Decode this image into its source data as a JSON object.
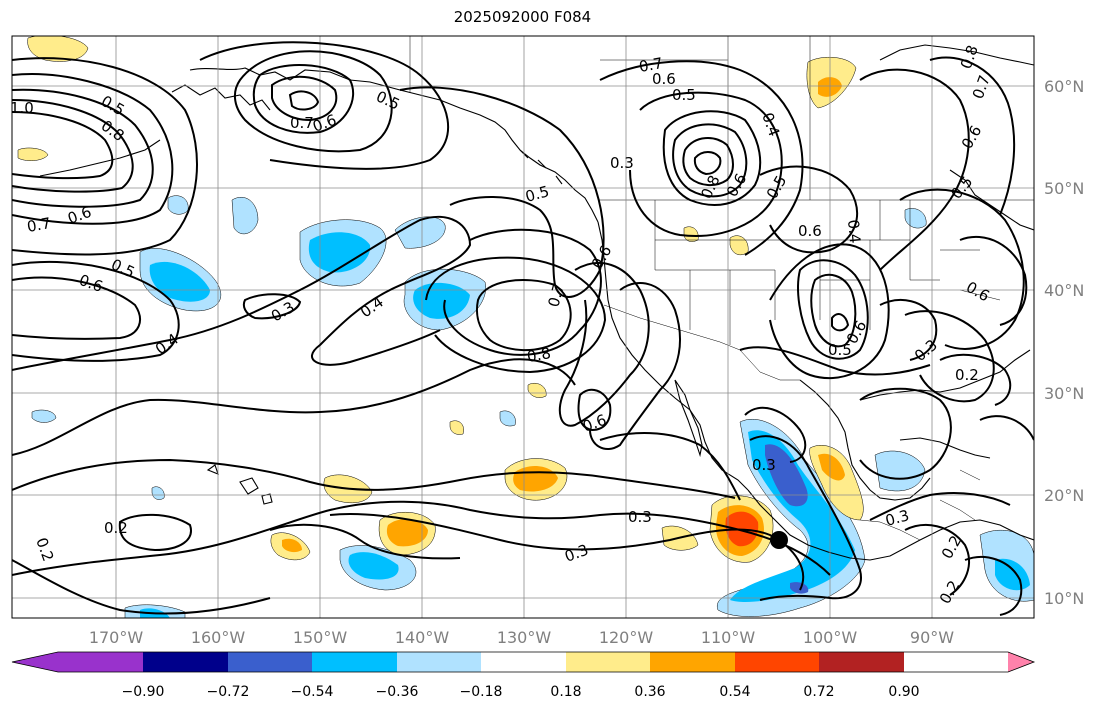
{
  "title": "2025092000 F084",
  "map": {
    "lon_labels": [
      "170°W",
      "160°W",
      "150°W",
      "140°W",
      "130°W",
      "120°W",
      "110°W",
      "100°W",
      "90°W"
    ],
    "lat_labels": [
      "60°N",
      "50°N",
      "40°N",
      "30°N",
      "20°N",
      "10°N"
    ]
  },
  "contour_labels": [
    {
      "text": "1.0"
    },
    {
      "text": "0.5"
    },
    {
      "text": "0.8"
    },
    {
      "text": "0.7"
    },
    {
      "text": "0.6"
    },
    {
      "text": "0.7"
    },
    {
      "text": "0.6"
    },
    {
      "text": "0.5"
    },
    {
      "text": "0.6"
    },
    {
      "text": "0.5"
    },
    {
      "text": "0.4"
    },
    {
      "text": "0.3"
    },
    {
      "text": "0.4"
    },
    {
      "text": "0.5"
    },
    {
      "text": "0.7"
    },
    {
      "text": "0.6"
    },
    {
      "text": "0.8"
    },
    {
      "text": "0.6"
    },
    {
      "text": "0.7"
    },
    {
      "text": "0.6"
    },
    {
      "text": "0.5"
    },
    {
      "text": "0.4"
    },
    {
      "text": "0.3"
    },
    {
      "text": "0.8"
    },
    {
      "text": "0.6"
    },
    {
      "text": "0.5"
    },
    {
      "text": "0.6"
    },
    {
      "text": "0.4"
    },
    {
      "text": "0.8"
    },
    {
      "text": "0.7"
    },
    {
      "text": "0.6"
    },
    {
      "text": "0.5"
    },
    {
      "text": "0.6"
    },
    {
      "text": "0.6"
    },
    {
      "text": "0.5"
    },
    {
      "text": "0.3"
    },
    {
      "text": "0.2"
    },
    {
      "text": "0.3"
    },
    {
      "text": "0.3"
    },
    {
      "text": "0.3"
    },
    {
      "text": "0.3"
    },
    {
      "text": "0.2"
    },
    {
      "text": "0.2"
    },
    {
      "text": "0.2"
    },
    {
      "text": "0.2"
    }
  ],
  "colorbar": {
    "tick_labels": [
      "−0.90",
      "−0.72",
      "−0.54",
      "−0.36",
      "−0.18",
      "0.18",
      "0.36",
      "0.54",
      "0.72",
      "0.90"
    ],
    "colors": [
      "#9932cc",
      "#00008b",
      "#3a5fcd",
      "#00bfff",
      "#b0e2ff",
      "#ffffff",
      "#ffec8b",
      "#ffa500",
      "#ff4500",
      "#b22222",
      "#ff82ab"
    ]
  },
  "marker": {
    "label": ""
  }
}
